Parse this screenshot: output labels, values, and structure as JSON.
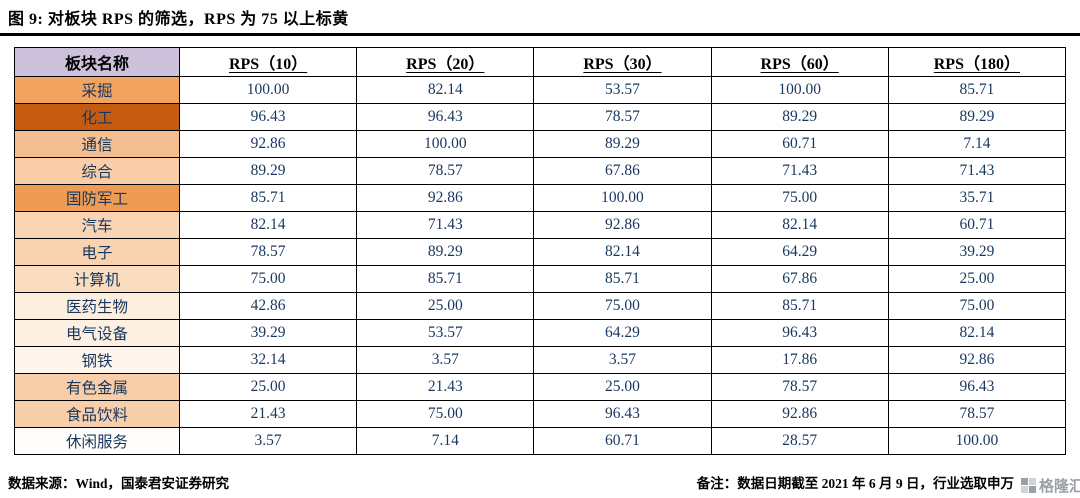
{
  "title": "图 9: 对板块 RPS 的筛选，RPS 为 75 以上标黄",
  "footer": {
    "source": "数据来源：Wind，国泰君安证券研究",
    "note": "备注：数据日期截至 2021 年 6 月 9 日，行业选取申万",
    "watermark": "格隆汇"
  },
  "colors": {
    "highlight_yellow": "#FFE48E",
    "header_name_bg": "#CCC0DA",
    "table_text": "#17375E",
    "border": "#000000",
    "watermark_gray": "#9aa0a6"
  },
  "chart_data": {
    "type": "table",
    "title": "图 9: 对板块 RPS 的筛选，RPS 为 75 以上标黄",
    "highlight_rule": "RPS 值大于等于 75 的单元格标黄",
    "highlight_threshold": 75,
    "columns": [
      "板块名称",
      "RPS（10）",
      "RPS（20）",
      "RPS（30）",
      "RPS（60）",
      "RPS（180）"
    ],
    "rows": [
      {
        "name": "采掘",
        "name_bg": "#F2A35F",
        "values": [
          100.0,
          82.14,
          53.57,
          100.0,
          85.71
        ]
      },
      {
        "name": "化工",
        "name_bg": "#C55A11",
        "values": [
          96.43,
          96.43,
          78.57,
          89.29,
          89.29
        ]
      },
      {
        "name": "通信",
        "name_bg": "#F5BE90",
        "values": [
          92.86,
          100.0,
          89.29,
          60.71,
          7.14
        ]
      },
      {
        "name": "综合",
        "name_bg": "#F8CDA8",
        "values": [
          89.29,
          78.57,
          67.86,
          71.43,
          71.43
        ]
      },
      {
        "name": "国防军工",
        "name_bg": "#EE9C53",
        "values": [
          85.71,
          92.86,
          100.0,
          75.0,
          35.71
        ]
      },
      {
        "name": "汽车",
        "name_bg": "#F9D4B4",
        "values": [
          82.14,
          71.43,
          92.86,
          82.14,
          60.71
        ]
      },
      {
        "name": "电子",
        "name_bg": "#F9D2B0",
        "values": [
          78.57,
          89.29,
          82.14,
          64.29,
          39.29
        ]
      },
      {
        "name": "计算机",
        "name_bg": "#FADDBF",
        "values": [
          75.0,
          85.71,
          85.71,
          67.86,
          25.0
        ]
      },
      {
        "name": "医药生物",
        "name_bg": "#FDEFE0",
        "values": [
          42.86,
          25.0,
          75.0,
          85.71,
          75.0
        ]
      },
      {
        "name": "电气设备",
        "name_bg": "#FDF0E3",
        "values": [
          39.29,
          53.57,
          64.29,
          96.43,
          82.14
        ]
      },
      {
        "name": "钢铁",
        "name_bg": "#FEF6ED",
        "values": [
          32.14,
          3.57,
          3.57,
          17.86,
          92.86
        ]
      },
      {
        "name": "有色金属",
        "name_bg": "#F8CEAA",
        "values": [
          25.0,
          21.43,
          25.0,
          78.57,
          96.43
        ]
      },
      {
        "name": "食品饮料",
        "name_bg": "#F8CFAB",
        "values": [
          21.43,
          75.0,
          96.43,
          92.86,
          78.57
        ]
      },
      {
        "name": "休闲服务",
        "name_bg": "#FFFEFC",
        "values": [
          3.57,
          7.14,
          60.71,
          28.57,
          100.0
        ]
      }
    ]
  }
}
